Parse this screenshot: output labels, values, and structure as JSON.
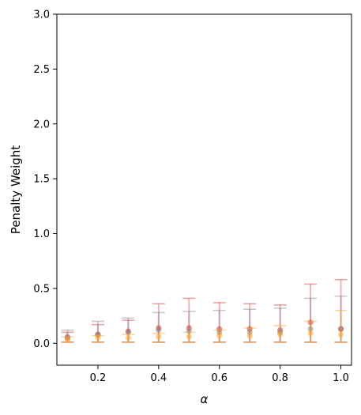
{
  "chart_data": {
    "type": "scatter",
    "title": "",
    "xlabel": "α",
    "ylabel": "Penalty Weight",
    "xlim": [
      0.065,
      1.035
    ],
    "ylim": [
      -0.2,
      3.0
    ],
    "x_ticks": [
      0.2,
      0.4,
      0.6,
      0.8,
      1.0
    ],
    "x_tick_labels": [
      "0.2",
      "0.4",
      "0.6",
      "0.8",
      "1.0"
    ],
    "y_ticks": [
      0.0,
      0.5,
      1.0,
      1.5,
      2.0,
      2.5,
      3.0
    ],
    "y_tick_labels": [
      "0.0",
      "0.5",
      "1.0",
      "1.5",
      "2.0",
      "2.5",
      "3.0"
    ],
    "grid": false,
    "series": [
      {
        "color": "#d62728",
        "x": [
          0.1,
          0.2,
          0.3,
          0.4,
          0.5,
          0.6,
          0.7,
          0.8,
          0.9,
          1.0
        ],
        "y": [
          0.05,
          0.08,
          0.11,
          0.14,
          0.14,
          0.13,
          0.13,
          0.12,
          0.19,
          0.13
        ],
        "lower": [
          0.01,
          0.01,
          0.01,
          0.01,
          0.01,
          0.01,
          0.01,
          0.01,
          0.01,
          0.01
        ],
        "upper": [
          0.1,
          0.17,
          0.21,
          0.36,
          0.41,
          0.37,
          0.36,
          0.35,
          0.54,
          0.58
        ]
      },
      {
        "color": "#7f7f7f",
        "x": [
          0.1,
          0.2,
          0.3,
          0.4,
          0.5,
          0.6,
          0.7,
          0.8,
          0.9,
          1.0
        ],
        "y": [
          0.06,
          0.08,
          0.1,
          0.12,
          0.11,
          0.1,
          0.1,
          0.1,
          0.13,
          0.13
        ],
        "lower": [
          0.01,
          0.01,
          0.01,
          0.01,
          0.01,
          0.01,
          0.01,
          0.01,
          0.01,
          0.01
        ],
        "upper": [
          0.12,
          0.2,
          0.23,
          0.28,
          0.29,
          0.3,
          0.31,
          0.32,
          0.41,
          0.43
        ]
      },
      {
        "color": "#ff9f1c",
        "x": [
          0.1,
          0.2,
          0.3,
          0.4,
          0.5,
          0.6,
          0.7,
          0.8,
          0.9,
          1.0
        ],
        "y": [
          0.03,
          0.05,
          0.05,
          0.06,
          0.06,
          0.07,
          0.07,
          0.08,
          0.09,
          0.08
        ],
        "lower": [
          0.01,
          0.01,
          0.01,
          0.01,
          0.01,
          0.01,
          0.01,
          0.01,
          0.01,
          0.01
        ],
        "upper": [
          0.06,
          0.07,
          0.08,
          0.09,
          0.1,
          0.12,
          0.14,
          0.16,
          0.2,
          0.3
        ]
      }
    ]
  }
}
